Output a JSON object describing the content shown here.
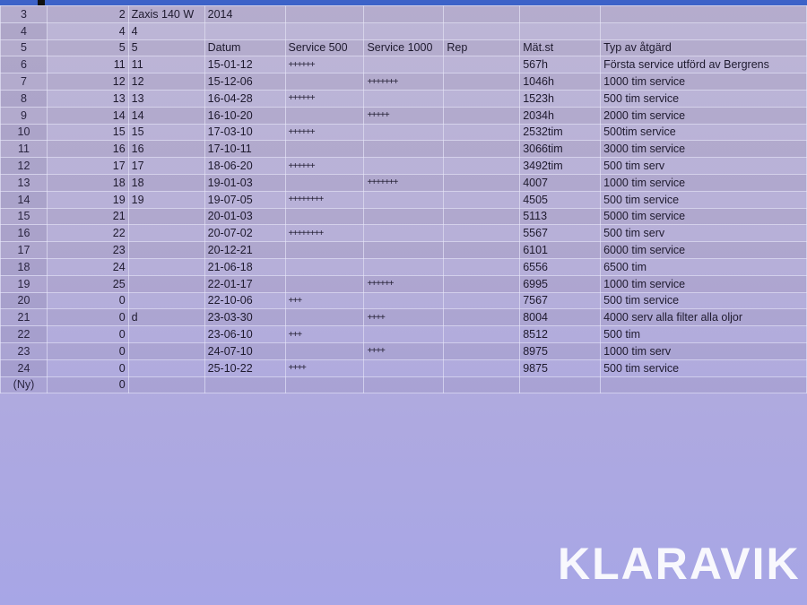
{
  "columns": [
    "",
    "",
    "",
    "Datum",
    "Service 500",
    "Service 1000",
    "Rep",
    "Mät.st",
    "Typ av åtgärd"
  ],
  "rows": [
    [
      "3",
      "2",
      "Zaxis 140 W",
      "2014",
      "",
      "",
      "",
      "",
      ""
    ],
    [
      "4",
      "4",
      "4",
      "",
      "",
      "",
      "",
      "",
      ""
    ],
    [
      "5",
      "5",
      "5",
      "Datum",
      "Service 500",
      "Service 1000",
      "Rep",
      "Mät.st",
      "Typ av åtgärd"
    ],
    [
      "6",
      "11",
      "11",
      "15-01-12",
      "++++++",
      "",
      "",
      "567h",
      "Första service utförd av Bergrens"
    ],
    [
      "7",
      "12",
      "12",
      "15-12-06",
      "",
      "+++++++",
      "",
      "1046h",
      "1000 tim  service"
    ],
    [
      "8",
      "13",
      "13",
      "16-04-28",
      "++++++",
      "",
      "",
      "1523h",
      "500 tim service"
    ],
    [
      "9",
      "14",
      "14",
      "16-10-20",
      "",
      "+++++",
      "",
      "2034h",
      "2000 tim service"
    ],
    [
      "10",
      "15",
      "15",
      "17-03-10",
      "++++++",
      "",
      "",
      "2532tim",
      "500tim service"
    ],
    [
      "11",
      "16",
      "16",
      "17-10-11",
      "",
      "",
      "",
      "3066tim",
      "3000 tim  service"
    ],
    [
      "12",
      "17",
      "17",
      "18-06-20",
      "++++++",
      "",
      "",
      "3492tim",
      "500 tim  serv"
    ],
    [
      "13",
      "18",
      "18",
      "19-01-03",
      "",
      "+++++++",
      "",
      "4007",
      "1000 tim service"
    ],
    [
      "14",
      "19",
      "19",
      "19-07-05",
      "++++++++",
      "",
      "",
      "4505",
      "500 tim service"
    ],
    [
      "15",
      "21",
      "",
      "20-01-03",
      "",
      "",
      "",
      "5113",
      "5000 tim service"
    ],
    [
      "16",
      "22",
      "",
      "20-07-02",
      "++++++++",
      "",
      "",
      "5567",
      "500 tim serv"
    ],
    [
      "17",
      "23",
      "",
      "20-12-21",
      "",
      "",
      "",
      "6101",
      "6000 tim service"
    ],
    [
      "18",
      "24",
      "",
      "21-06-18",
      "",
      "",
      "",
      "6556",
      "6500 tim"
    ],
    [
      "19",
      "25",
      "",
      "22-01-17",
      "",
      "++++++",
      "",
      "6995",
      "1000 tim service"
    ],
    [
      "20",
      "0",
      "",
      "22-10-06",
      "+++",
      "",
      "",
      "7567",
      "500 tim service"
    ],
    [
      "21",
      "0",
      "d",
      "23-03-30",
      "",
      "++++",
      "",
      "8004",
      "4000 serv alla filter alla oljor"
    ],
    [
      "22",
      "0",
      "",
      "23-06-10",
      "+++",
      "",
      "",
      "8512",
      "500 tim"
    ],
    [
      "23",
      "0",
      "",
      "24-07-10",
      "",
      "++++",
      "",
      "8975",
      "1000 tim serv"
    ],
    [
      "24",
      "0",
      "",
      "25-10-22",
      "++++",
      "",
      "",
      "9875",
      "500 tim service"
    ],
    [
      "(Ny)",
      "0",
      "",
      "",
      "",
      "",
      "",
      "",
      ""
    ]
  ],
  "watermark": "KLARAVIK",
  "colors": {
    "header_bar": "#3d62c8",
    "sheet_bg": "#b9b3d6"
  }
}
